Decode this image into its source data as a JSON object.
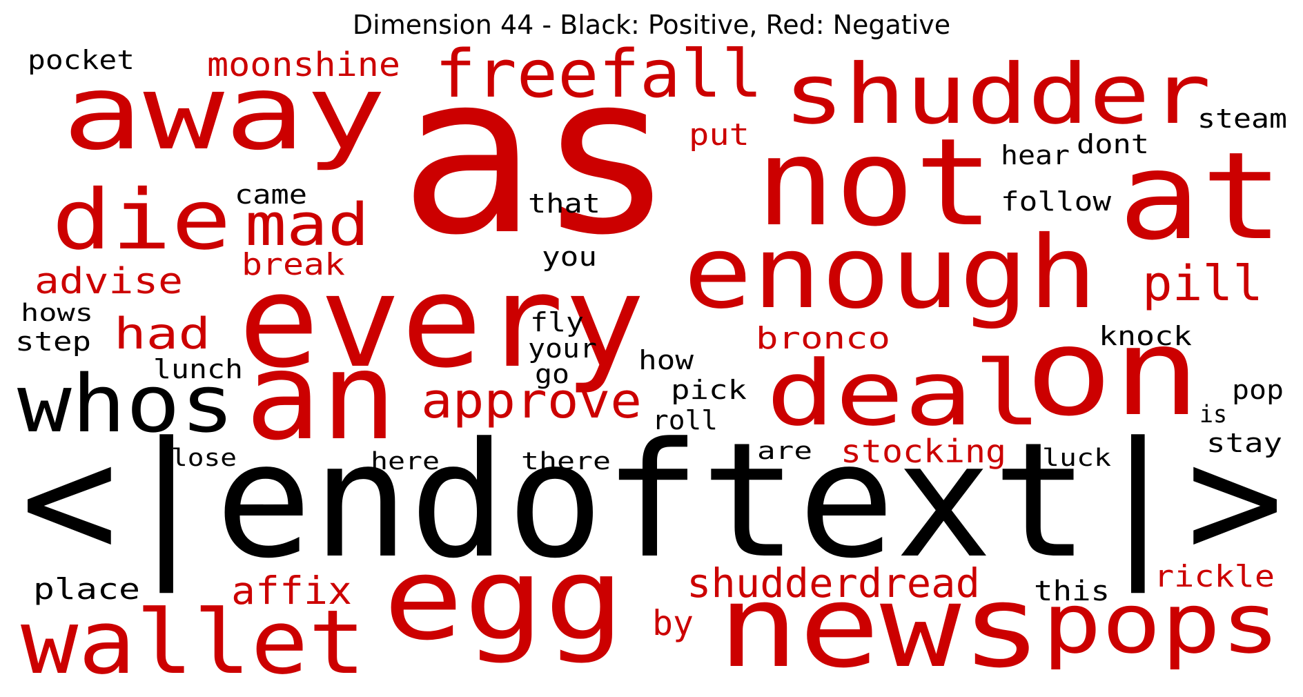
{
  "title": "Dimension 44 - Black: Positive, Red: Negative",
  "colors": {
    "positive": "#000000",
    "negative": "#cc0000"
  },
  "words": [
    {
      "text": "as",
      "polarity": "negative"
    },
    {
      "text": "<|endoftext|>",
      "polarity": "positive"
    },
    {
      "text": "every",
      "polarity": "negative"
    },
    {
      "text": "not",
      "polarity": "negative"
    },
    {
      "text": "at",
      "polarity": "negative"
    },
    {
      "text": "away",
      "polarity": "negative"
    },
    {
      "text": "shudder",
      "polarity": "negative"
    },
    {
      "text": "enough",
      "polarity": "negative"
    },
    {
      "text": "on",
      "polarity": "negative"
    },
    {
      "text": "deal",
      "polarity": "negative"
    },
    {
      "text": "an",
      "polarity": "negative"
    },
    {
      "text": "egg",
      "polarity": "negative"
    },
    {
      "text": "news",
      "polarity": "negative"
    },
    {
      "text": "pops",
      "polarity": "negative"
    },
    {
      "text": "wallet",
      "polarity": "negative"
    },
    {
      "text": "whos",
      "polarity": "positive"
    },
    {
      "text": "die",
      "polarity": "negative"
    },
    {
      "text": "freefall",
      "polarity": "negative"
    },
    {
      "text": "mad",
      "polarity": "negative"
    },
    {
      "text": "approve",
      "polarity": "negative"
    },
    {
      "text": "shudderdread",
      "polarity": "negative"
    },
    {
      "text": "moonshine",
      "polarity": "negative"
    },
    {
      "text": "pill",
      "polarity": "negative"
    },
    {
      "text": "had",
      "polarity": "negative"
    },
    {
      "text": "advise",
      "polarity": "negative"
    },
    {
      "text": "affix",
      "polarity": "negative"
    },
    {
      "text": "stocking",
      "polarity": "negative"
    },
    {
      "text": "bronco",
      "polarity": "negative"
    },
    {
      "text": "break",
      "polarity": "negative"
    },
    {
      "text": "put",
      "polarity": "negative"
    },
    {
      "text": "rickle",
      "polarity": "negative"
    },
    {
      "text": "by",
      "polarity": "negative"
    },
    {
      "text": "pocket",
      "polarity": "positive"
    },
    {
      "text": "steam",
      "polarity": "positive"
    },
    {
      "text": "hear",
      "polarity": "positive"
    },
    {
      "text": "dont",
      "polarity": "positive"
    },
    {
      "text": "follow",
      "polarity": "positive"
    },
    {
      "text": "came",
      "polarity": "positive"
    },
    {
      "text": "that",
      "polarity": "positive"
    },
    {
      "text": "you",
      "polarity": "positive"
    },
    {
      "text": "hows",
      "polarity": "positive"
    },
    {
      "text": "step",
      "polarity": "positive"
    },
    {
      "text": "lunch",
      "polarity": "positive"
    },
    {
      "text": "fly",
      "polarity": "positive"
    },
    {
      "text": "your",
      "polarity": "positive"
    },
    {
      "text": "go",
      "polarity": "positive"
    },
    {
      "text": "how",
      "polarity": "positive"
    },
    {
      "text": "knock",
      "polarity": "positive"
    },
    {
      "text": "pick",
      "polarity": "positive"
    },
    {
      "text": "roll",
      "polarity": "positive"
    },
    {
      "text": "pop",
      "polarity": "positive"
    },
    {
      "text": "is",
      "polarity": "positive"
    },
    {
      "text": "stay",
      "polarity": "positive"
    },
    {
      "text": "lose",
      "polarity": "positive"
    },
    {
      "text": "here",
      "polarity": "positive"
    },
    {
      "text": "there",
      "polarity": "positive"
    },
    {
      "text": "are",
      "polarity": "positive"
    },
    {
      "text": "luck",
      "polarity": "positive"
    },
    {
      "text": "place",
      "polarity": "positive"
    },
    {
      "text": "this",
      "polarity": "positive"
    }
  ]
}
